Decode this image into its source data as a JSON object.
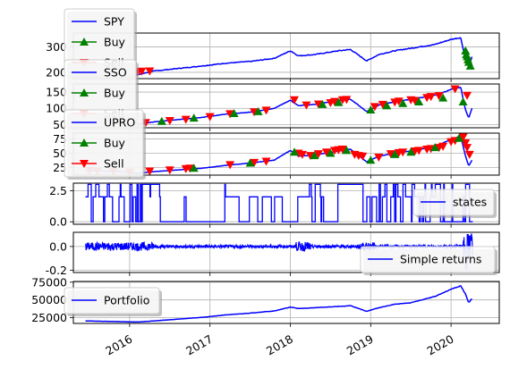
{
  "chart_data": {
    "type": "line",
    "x_ticks": [
      "2016",
      "2017",
      "2018",
      "2019",
      "2020"
    ],
    "x_range": [
      2015.3,
      2020.6
    ],
    "panels": [
      {
        "id": "spy",
        "y_ticks": [
          200,
          300
        ],
        "ylim": [
          175,
          355
        ],
        "series": [
          {
            "name": "SPY",
            "color": "#0000ff",
            "x": [
              2015.45,
              2015.7,
              2015.9,
              2016.1,
              2016.3,
              2016.6,
              2016.9,
              2017.2,
              2017.5,
              2017.8,
              2018.0,
              2018.1,
              2018.3,
              2018.6,
              2018.75,
              2018.95,
              2019.1,
              2019.3,
              2019.5,
              2019.8,
              2020.0,
              2020.12,
              2020.18,
              2020.22,
              2020.26
            ],
            "y": [
              208,
              205,
              200,
              190,
              205,
              215,
              225,
              236,
              243,
              255,
              285,
              265,
              270,
              285,
              290,
              245,
              270,
              285,
              295,
              310,
              330,
              337,
              250,
              225,
              260
            ]
          }
        ],
        "buy": {
          "label": "Buy",
          "color": "#008000",
          "x": [
            2020.18,
            2020.19,
            2020.2,
            2020.21,
            2020.22,
            2020.24
          ],
          "y": [
            285,
            270,
            262,
            250,
            240,
            225
          ]
        },
        "sell": {
          "label": "Sell",
          "color": "#ff0000",
          "x": [
            2015.45,
            2015.55,
            2015.65,
            2015.8,
            2015.9,
            2016.1,
            2016.15,
            2016.25
          ],
          "y": [
            208,
            207,
            205,
            200,
            198,
            202,
            204,
            205
          ]
        },
        "legend": [
          "SPY",
          "Buy",
          "Sell"
        ]
      },
      {
        "id": "sso",
        "y_ticks": [
          50,
          100,
          150
        ],
        "ylim": [
          40,
          175
        ],
        "series": [
          {
            "name": "SSO",
            "color": "#0000ff",
            "x": [
              2015.45,
              2015.7,
              2015.9,
              2016.1,
              2016.3,
              2016.6,
              2016.9,
              2017.2,
              2017.5,
              2017.8,
              2018.0,
              2018.1,
              2018.3,
              2018.6,
              2018.75,
              2018.95,
              2019.1,
              2019.3,
              2019.5,
              2019.8,
              2020.0,
              2020.12,
              2020.18,
              2020.22,
              2020.26
            ],
            "y": [
              60,
              58,
              55,
              50,
              58,
              65,
              72,
              82,
              88,
              100,
              125,
              108,
              112,
              124,
              128,
              90,
              110,
              120,
              128,
              140,
              158,
              165,
              95,
              70,
              100
            ]
          }
        ],
        "buy": {
          "label": "Buy",
          "color": "#008000",
          "x": [
            2015.6,
            2015.8,
            2016.0,
            2016.4,
            2016.8,
            2017.3,
            2017.6,
            2018.4,
            2018.6,
            2019.0,
            2019.2,
            2019.4,
            2019.6,
            2019.9,
            2020.15
          ],
          "y": [
            57,
            56,
            54,
            60,
            70,
            84,
            90,
            112,
            118,
            95,
            108,
            115,
            120,
            132,
            120
          ]
        },
        "sell": {
          "label": "Sell",
          "color": "#ff0000",
          "x": [
            2015.5,
            2015.75,
            2015.95,
            2016.2,
            2016.5,
            2016.7,
            2017.0,
            2017.25,
            2017.55,
            2017.7,
            2018.05,
            2018.2,
            2018.35,
            2018.5,
            2018.55,
            2018.65,
            2018.7,
            2019.05,
            2019.15,
            2019.3,
            2019.35,
            2019.5,
            2019.55,
            2019.7,
            2019.75,
            2019.85,
            2020.05,
            2020.2
          ],
          "y": [
            59,
            57,
            55,
            56,
            62,
            66,
            74,
            83,
            89,
            94,
            126,
            110,
            113,
            117,
            121,
            126,
            127,
            105,
            112,
            119,
            122,
            126,
            124,
            133,
            136,
            139,
            160,
            140
          ]
        },
        "legend": [
          "SSO",
          "Buy",
          "Sell"
        ]
      },
      {
        "id": "upro",
        "y_ticks": [
          25,
          50,
          75
        ],
        "ylim": [
          12,
          85
        ],
        "series": [
          {
            "name": "UPRO",
            "color": "#0000ff",
            "x": [
              2015.45,
              2015.7,
              2015.9,
              2016.1,
              2016.3,
              2016.6,
              2016.9,
              2017.2,
              2017.5,
              2017.8,
              2018.0,
              2018.1,
              2018.3,
              2018.6,
              2018.75,
              2018.95,
              2019.1,
              2019.3,
              2019.5,
              2019.8,
              2020.0,
              2020.12,
              2020.18,
              2020.22,
              2020.26
            ],
            "y": [
              20,
              19,
              18,
              15,
              18,
              21,
              24,
              29,
              33,
              38,
              55,
              45,
              47,
              54,
              57,
              35,
              45,
              50,
              54,
              62,
              74,
              80,
              45,
              28,
              38
            ]
          }
        ],
        "buy": {
          "label": "Buy",
          "color": "#008000",
          "x": [
            2016.8,
            2017.5,
            2018.05,
            2018.3,
            2018.5,
            2018.7,
            2019.0,
            2019.3,
            2019.5,
            2019.8,
            2020.1
          ],
          "y": [
            24,
            33,
            52,
            46,
            50,
            55,
            38,
            48,
            52,
            60,
            76
          ]
        },
        "sell": {
          "label": "Sell",
          "color": "#ff0000",
          "x": [
            2015.5,
            2015.6,
            2015.8,
            2016.0,
            2016.25,
            2016.5,
            2016.7,
            2016.75,
            2017.25,
            2017.55,
            2017.7,
            2018.1,
            2018.15,
            2018.25,
            2018.35,
            2018.45,
            2018.55,
            2018.6,
            2018.65,
            2018.8,
            2018.85,
            2018.9,
            2019.1,
            2019.25,
            2019.35,
            2019.4,
            2019.55,
            2019.6,
            2019.7,
            2019.75,
            2019.85,
            2019.9,
            2020.0,
            2020.05,
            2020.15,
            2020.18,
            2020.2,
            2020.23
          ],
          "y": [
            20,
            19,
            18,
            17,
            19,
            21,
            23,
            24,
            30,
            34,
            36,
            50,
            48,
            46,
            49,
            52,
            55,
            56,
            57,
            48,
            46,
            45,
            43,
            49,
            51,
            52,
            54,
            55,
            57,
            58,
            60,
            62,
            70,
            72,
            78,
            68,
            60,
            48
          ]
        },
        "legend": [
          "UPRO",
          "Buy",
          "Sell"
        ]
      },
      {
        "id": "states",
        "y_ticks": [
          "0.0",
          "2.5"
        ],
        "ylim": [
          -0.2,
          3.1
        ],
        "series": [
          {
            "name": "states",
            "color": "#0000ff"
          }
        ],
        "legend": [
          "states"
        ]
      },
      {
        "id": "returns",
        "y_ticks": [
          "-0.2",
          "0.0"
        ],
        "ylim": [
          -0.22,
          0.12
        ],
        "series": [
          {
            "name": "Simple returns",
            "color": "#0000ff"
          }
        ],
        "legend": [
          "Simple returns"
        ]
      },
      {
        "id": "portfolio",
        "y_ticks": [
          25000,
          50000,
          75000
        ],
        "ylim": [
          17000,
          76000
        ],
        "series": [
          {
            "name": "Portfolio",
            "color": "#0000ff",
            "x": [
              2015.45,
              2015.7,
              2015.9,
              2016.1,
              2016.3,
              2016.6,
              2016.9,
              2017.2,
              2017.5,
              2017.8,
              2018.0,
              2018.1,
              2018.3,
              2018.6,
              2018.75,
              2018.95,
              2019.1,
              2019.3,
              2019.5,
              2019.8,
              2020.0,
              2020.12,
              2020.18,
              2020.22,
              2020.26
            ],
            "y": [
              20500,
              20000,
              19500,
              19000,
              20500,
              23000,
              25500,
              29000,
              31500,
              34500,
              40000,
              38000,
              39000,
              41000,
              42000,
              34000,
              39000,
              44000,
              46000,
              55000,
              65000,
              70000,
              58000,
              46000,
              52000
            ]
          }
        ],
        "legend": [
          "Portfolio"
        ]
      }
    ]
  }
}
